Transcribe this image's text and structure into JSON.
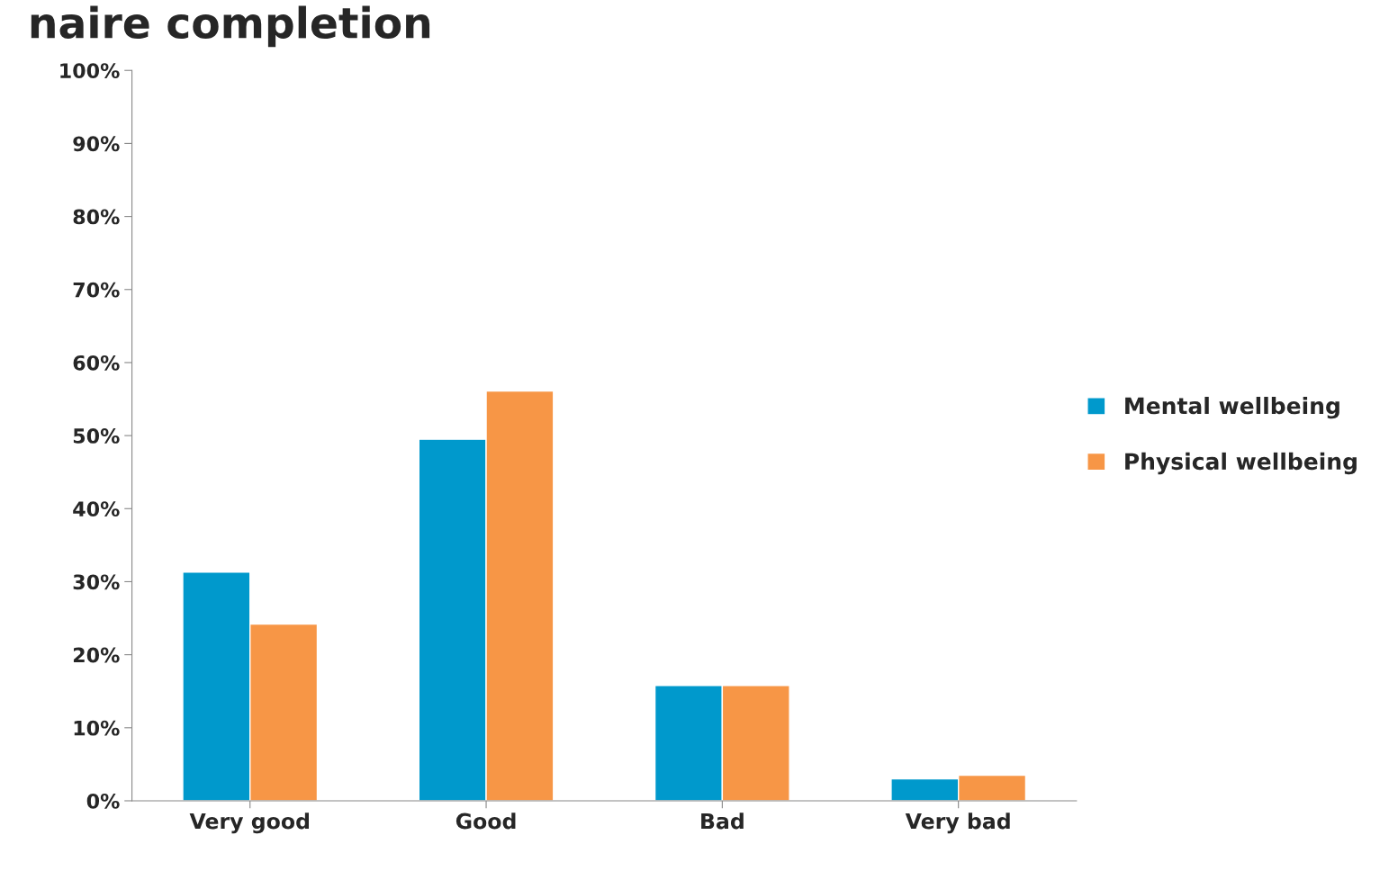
{
  "chart_data": {
    "type": "bar",
    "title": "naire completion",
    "categories": [
      "Very good",
      "Good",
      "Bad",
      "Very bad"
    ],
    "series": [
      {
        "name": "Mental wellbeing",
        "color": "#0099cc",
        "values": [
          31.3,
          49.5,
          15.8,
          3.0
        ]
      },
      {
        "name": "Physical wellbeing",
        "color": "#f79646",
        "values": [
          24.2,
          56.1,
          15.8,
          3.5
        ]
      }
    ],
    "ylim": [
      0,
      100
    ],
    "yticks": [
      {
        "value": 0,
        "label": "0%"
      },
      {
        "value": 10,
        "label": "10%"
      },
      {
        "value": 20,
        "label": "20%"
      },
      {
        "value": 30,
        "label": "30%"
      },
      {
        "value": 40,
        "label": "40%"
      },
      {
        "value": 50,
        "label": "50%"
      },
      {
        "value": 60,
        "label": "60%"
      },
      {
        "value": 70,
        "label": "70%"
      },
      {
        "value": 80,
        "label": "80%"
      },
      {
        "value": 90,
        "label": "90%"
      },
      {
        "value": 100,
        "label": "100%"
      }
    ],
    "grid": false,
    "legend": "right"
  }
}
